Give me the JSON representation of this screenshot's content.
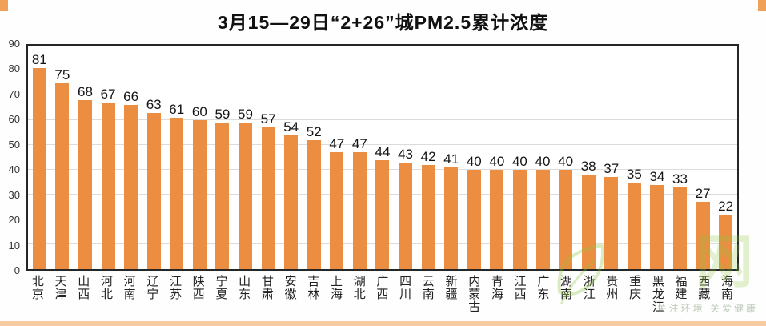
{
  "chart_data": {
    "type": "bar",
    "title": "3月15—29日“2+26”城PM2.5累计浓度",
    "categories": [
      "北京",
      "天津",
      "山西",
      "河北",
      "河南",
      "辽宁",
      "江苏",
      "陕西",
      "宁夏",
      "山东",
      "甘肃",
      "安徽",
      "吉林",
      "上海",
      "湖北",
      "广西",
      "四川",
      "云南",
      "新疆",
      "内蒙古",
      "青海",
      "江西",
      "广东",
      "湖南",
      "浙江",
      "贵州",
      "重庆",
      "黑龙江",
      "福建",
      "西藏",
      "海南"
    ],
    "values": [
      81,
      75,
      68,
      67,
      66,
      63,
      61,
      60,
      59,
      59,
      57,
      54,
      52,
      47,
      47,
      44,
      43,
      42,
      41,
      40,
      40,
      40,
      40,
      40,
      38,
      37,
      35,
      34,
      33,
      27,
      22
    ],
    "xlabel": "",
    "ylabel": "",
    "ylim": [
      0,
      90
    ],
    "ytick_step": 10,
    "grid": true,
    "legend": "none",
    "data_labels": true
  },
  "colors": {
    "bar": "#EB8E42",
    "grid": "#DCDCDC",
    "border": "#262626",
    "corner": "#F0A057",
    "strip": "#F6CBA0",
    "wm": "#8CC63F"
  },
  "watermark": {
    "big_text": "网",
    "tagline": "关注环境 关爱健康"
  }
}
